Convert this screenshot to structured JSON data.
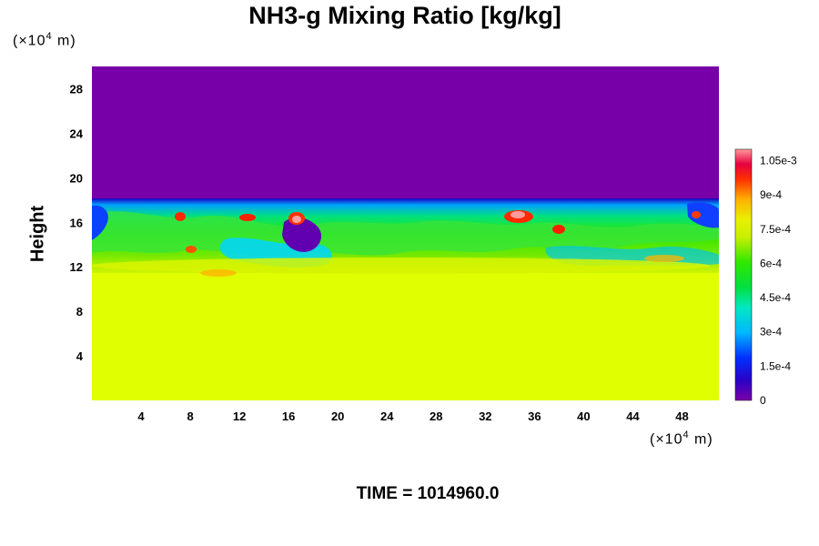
{
  "chart_data": {
    "type": "heatmap",
    "title": "NH3-g Mixing Ratio [kg/kg]",
    "ylabel": "Height",
    "x_unit_prefix": "(×10",
    "x_unit_exp": "4",
    "x_unit_suffix": " m)",
    "y_unit_prefix": "(×10",
    "y_unit_exp": "4",
    "y_unit_suffix": " m)",
    "xlim": [
      0,
      51
    ],
    "ylim": [
      0,
      30
    ],
    "x_ticks": [
      4,
      8,
      12,
      16,
      20,
      24,
      28,
      32,
      36,
      40,
      44,
      48
    ],
    "y_ticks": [
      4,
      8,
      12,
      16,
      20,
      24,
      28
    ],
    "colorbar": {
      "range": [
        0,
        0.0011
      ],
      "tick_values": [
        0,
        0.00015,
        0.0003,
        0.00045,
        0.0006,
        0.00075,
        0.0009,
        0.00105
      ],
      "tick_labels": [
        "0",
        "1.5e-4",
        "3e-4",
        "4.5e-4",
        "6e-4",
        "7.5e-4",
        "9e-4",
        "1.05e-3"
      ]
    },
    "layers": [
      {
        "name": "upper",
        "y_range": [
          18,
          30
        ],
        "value": 0.0
      },
      {
        "name": "lower",
        "y_range": [
          0,
          11
        ],
        "value": 0.00078
      }
    ],
    "footer": "TIME = 1014960.0"
  }
}
